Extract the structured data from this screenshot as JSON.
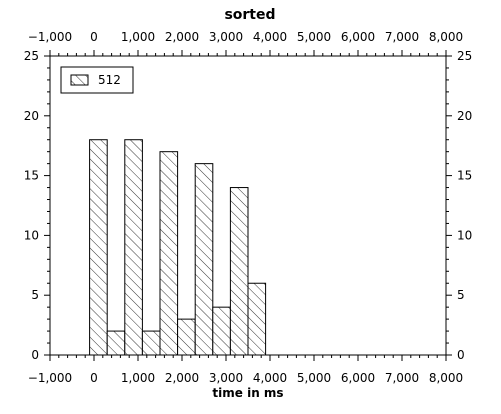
{
  "chart_data": {
    "type": "bar",
    "title": "sorted",
    "xlabel": "time in ms",
    "ylabel": "",
    "xlim": [
      -1000,
      8000
    ],
    "ylim": [
      0,
      25
    ],
    "x_ticks": [
      -1000,
      0,
      1000,
      2000,
      3000,
      4000,
      5000,
      6000,
      7000,
      8000
    ],
    "x_tick_labels": [
      "−1,000",
      "0",
      "1,000",
      "2,000",
      "3,000",
      "4,000",
      "5,000",
      "6,000",
      "7,000",
      "8,000"
    ],
    "y_ticks": [
      0,
      5,
      10,
      15,
      20,
      25
    ],
    "y_tick_labels": [
      "0",
      "5",
      "10",
      "15",
      "20",
      "25"
    ],
    "legend": {
      "placement": "top-left",
      "entries": [
        "512"
      ]
    },
    "grid": false,
    "series": [
      {
        "name": "512",
        "pattern": "hatched",
        "bars": [
          {
            "x0": -100,
            "x1": 300,
            "value": 18
          },
          {
            "x0": 300,
            "x1": 700,
            "value": 2
          },
          {
            "x0": 700,
            "x1": 1100,
            "value": 18
          },
          {
            "x0": 1100,
            "x1": 1500,
            "value": 2
          },
          {
            "x0": 1500,
            "x1": 1900,
            "value": 17
          },
          {
            "x0": 1900,
            "x1": 2300,
            "value": 3
          },
          {
            "x0": 2300,
            "x1": 2700,
            "value": 16
          },
          {
            "x0": 2700,
            "x1": 3100,
            "value": 4
          },
          {
            "x0": 3100,
            "x1": 3500,
            "value": 14
          },
          {
            "x0": 3500,
            "x1": 3900,
            "value": 6
          }
        ]
      }
    ]
  }
}
